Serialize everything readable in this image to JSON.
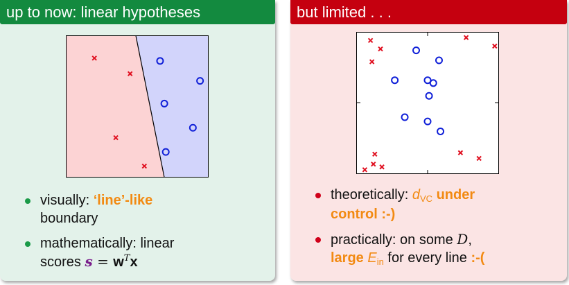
{
  "left_panel": {
    "title": "up to now: linear hypotheses",
    "bullet1": {
      "prefix": "visually: ",
      "highlight": "‘line’-like",
      "rest": "boundary"
    },
    "bullet2": {
      "line1": "mathematically: linear",
      "prefix2": "scores ",
      "s": "s",
      "eq": " = ",
      "w": "w",
      "sup": "T",
      "x": "x"
    },
    "plot": {
      "colors": {
        "region_pos": "#fcd3d4",
        "region_neg": "#d2d4fb",
        "cross": "#e01020",
        "circle": "#1020d8"
      },
      "crosses": [
        [
          0.2,
          0.84
        ],
        [
          0.45,
          0.73
        ],
        [
          0.35,
          0.28
        ],
        [
          0.55,
          0.08
        ]
      ],
      "circles": [
        [
          0.66,
          0.82
        ],
        [
          0.94,
          0.68
        ],
        [
          0.69,
          0.52
        ],
        [
          0.89,
          0.35
        ],
        [
          0.7,
          0.18
        ]
      ]
    }
  },
  "right_panel": {
    "title": "but limited . . .",
    "bullet1": {
      "prefix": "theoretically: ",
      "d": "d",
      "sub": "VC",
      "rest1": " under",
      "rest2": "control :-)"
    },
    "bullet2": {
      "prefix": "practically: on some ",
      "D": "D",
      "suffix": ",",
      "large": "large ",
      "E": "E",
      "sub": "in",
      "rest": " for every line ",
      "smile": ":-("
    },
    "plot": {
      "colors": {
        "cross": "#e01020",
        "circle": "#1020d8"
      },
      "crosses": [
        [
          0.1,
          0.94
        ],
        [
          0.17,
          0.88
        ],
        [
          0.11,
          0.79
        ],
        [
          0.77,
          0.96
        ],
        [
          0.97,
          0.9
        ],
        [
          0.13,
          0.14
        ],
        [
          0.12,
          0.07
        ],
        [
          0.18,
          0.05
        ],
        [
          0.06,
          0.03
        ],
        [
          0.73,
          0.15
        ],
        [
          0.86,
          0.11
        ]
      ],
      "circles": [
        [
          0.42,
          0.87
        ],
        [
          0.58,
          0.8
        ],
        [
          0.27,
          0.66
        ],
        [
          0.5,
          0.66
        ],
        [
          0.54,
          0.64
        ],
        [
          0.51,
          0.55
        ],
        [
          0.34,
          0.4
        ],
        [
          0.5,
          0.37
        ],
        [
          0.59,
          0.3
        ]
      ]
    }
  }
}
